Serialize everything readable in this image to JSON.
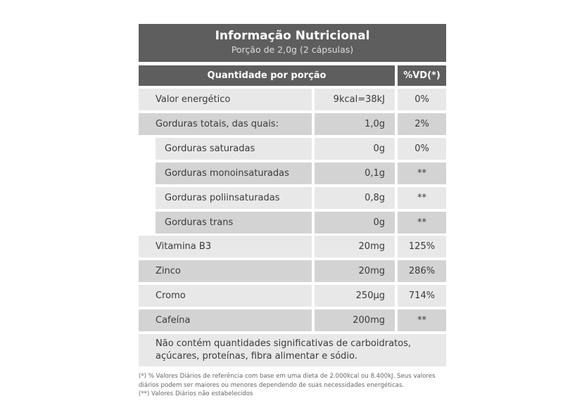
{
  "title": "Informação Nutricional",
  "serving": "Porção de 2,0g (2 cápsulas)",
  "headers": {
    "quantity": "Quantidade por porção",
    "dv": "%VD(*)"
  },
  "rows": [
    {
      "label": "Valor energético",
      "amount": "9kcal=38kJ",
      "dv": "0%",
      "sub": false
    },
    {
      "label": "Gorduras totais, das quais:",
      "amount": "1,0g",
      "dv": "2%",
      "sub": false
    },
    {
      "label": "Gorduras saturadas",
      "amount": "0g",
      "dv": "0%",
      "sub": true
    },
    {
      "label": "Gorduras monoinsaturadas",
      "amount": "0,1g",
      "dv": "**",
      "sub": true
    },
    {
      "label": "Gorduras poliinsaturadas",
      "amount": "0,8g",
      "dv": "**",
      "sub": true
    },
    {
      "label": "Gorduras trans",
      "amount": "0g",
      "dv": "**",
      "sub": true
    },
    {
      "label": "Vitamina B3",
      "amount": "20mg",
      "dv": "125%",
      "sub": false
    },
    {
      "label": "Zinco",
      "amount": "20mg",
      "dv": "286%",
      "sub": false
    },
    {
      "label": "Cromo",
      "amount": "250µg",
      "dv": "714%",
      "sub": false
    },
    {
      "label": "Cafeína",
      "amount": "200mg",
      "dv": "**",
      "sub": false
    }
  ],
  "note": "Não contém quantidades significativas de carboidratos, açúcares, proteínas, fibra alimentar e sódio.",
  "footnotes": [
    "(*) % Valores Diários de referência com base em uma dieta de 2.000kcal ou 8.400kJ. Seus valores diários podem ser maiores ou menores dependendo de suas necessidades energéticas.",
    "(**) Valores Diários não estabelecidos"
  ]
}
